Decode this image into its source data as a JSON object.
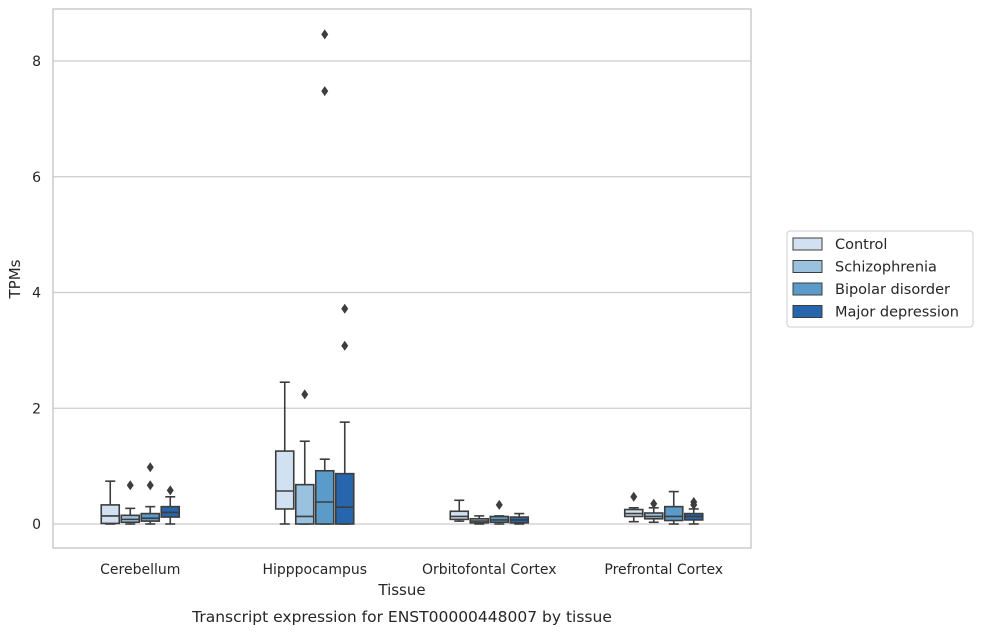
{
  "chart_data": {
    "type": "box",
    "xlabel": "Tissue",
    "ylabel": "TPMs",
    "caption": "Transcript expression for ENST00000448007 by tissue",
    "ylim": [
      -0.4,
      8.9
    ],
    "yticks": [
      0,
      2,
      4,
      6,
      8
    ],
    "grid": "horizontal",
    "legend_position": "right",
    "categories": [
      "Cerebellum",
      "Hipppocampus",
      "Orbitofontal Cortex",
      "Prefrontal Cortex"
    ],
    "series": [
      {
        "name": "Control",
        "color": "#d1e1f1",
        "boxes": [
          {
            "whislo": 0.0,
            "q1": 0.01,
            "med": 0.14,
            "q3": 0.33,
            "whishi": 0.74,
            "fliers": []
          },
          {
            "whislo": 0.0,
            "q1": 0.26,
            "med": 0.57,
            "q3": 1.26,
            "whishi": 2.45,
            "fliers": []
          },
          {
            "whislo": 0.05,
            "q1": 0.08,
            "med": 0.13,
            "q3": 0.22,
            "whishi": 0.41,
            "fliers": []
          },
          {
            "whislo": 0.04,
            "q1": 0.13,
            "med": 0.18,
            "q3": 0.25,
            "whishi": 0.28,
            "fliers": [
              0.47
            ]
          }
        ]
      },
      {
        "name": "Schizophrenia",
        "color": "#9ac1dd",
        "boxes": [
          {
            "whislo": 0.0,
            "q1": 0.03,
            "med": 0.08,
            "q3": 0.15,
            "whishi": 0.27,
            "fliers": [
              0.67
            ]
          },
          {
            "whislo": 0.0,
            "q1": 0.0,
            "med": 0.13,
            "q3": 0.68,
            "whishi": 1.43,
            "fliers": [
              2.24
            ]
          },
          {
            "whislo": 0.0,
            "q1": 0.02,
            "med": 0.05,
            "q3": 0.09,
            "whishi": 0.14,
            "fliers": []
          },
          {
            "whislo": 0.03,
            "q1": 0.09,
            "med": 0.13,
            "q3": 0.19,
            "whishi": 0.28,
            "fliers": [
              0.35
            ]
          }
        ]
      },
      {
        "name": "Bipolar disorder",
        "color": "#5b9bc9",
        "boxes": [
          {
            "whislo": 0.0,
            "q1": 0.05,
            "med": 0.1,
            "q3": 0.18,
            "whishi": 0.3,
            "fliers": [
              0.67,
              0.98
            ]
          },
          {
            "whislo": 0.0,
            "q1": 0.0,
            "med": 0.38,
            "q3": 0.92,
            "whishi": 1.12,
            "fliers": [
              7.48,
              8.46
            ]
          },
          {
            "whislo": 0.0,
            "q1": 0.03,
            "med": 0.07,
            "q3": 0.13,
            "whishi": 0.14,
            "fliers": [
              0.33
            ]
          },
          {
            "whislo": 0.0,
            "q1": 0.06,
            "med": 0.13,
            "q3": 0.3,
            "whishi": 0.56,
            "fliers": []
          }
        ]
      },
      {
        "name": "Major depression",
        "color": "#2765ac",
        "boxes": [
          {
            "whislo": 0.0,
            "q1": 0.12,
            "med": 0.2,
            "q3": 0.3,
            "whishi": 0.47,
            "fliers": [
              0.58
            ]
          },
          {
            "whislo": 0.0,
            "q1": 0.0,
            "med": 0.29,
            "q3": 0.87,
            "whishi": 1.76,
            "fliers": [
              3.08,
              3.72
            ]
          },
          {
            "whislo": 0.0,
            "q1": 0.02,
            "med": 0.07,
            "q3": 0.12,
            "whishi": 0.18,
            "fliers": []
          },
          {
            "whislo": 0.0,
            "q1": 0.07,
            "med": 0.13,
            "q3": 0.18,
            "whishi": 0.26,
            "fliers": [
              0.33,
              0.38
            ]
          }
        ]
      }
    ]
  }
}
